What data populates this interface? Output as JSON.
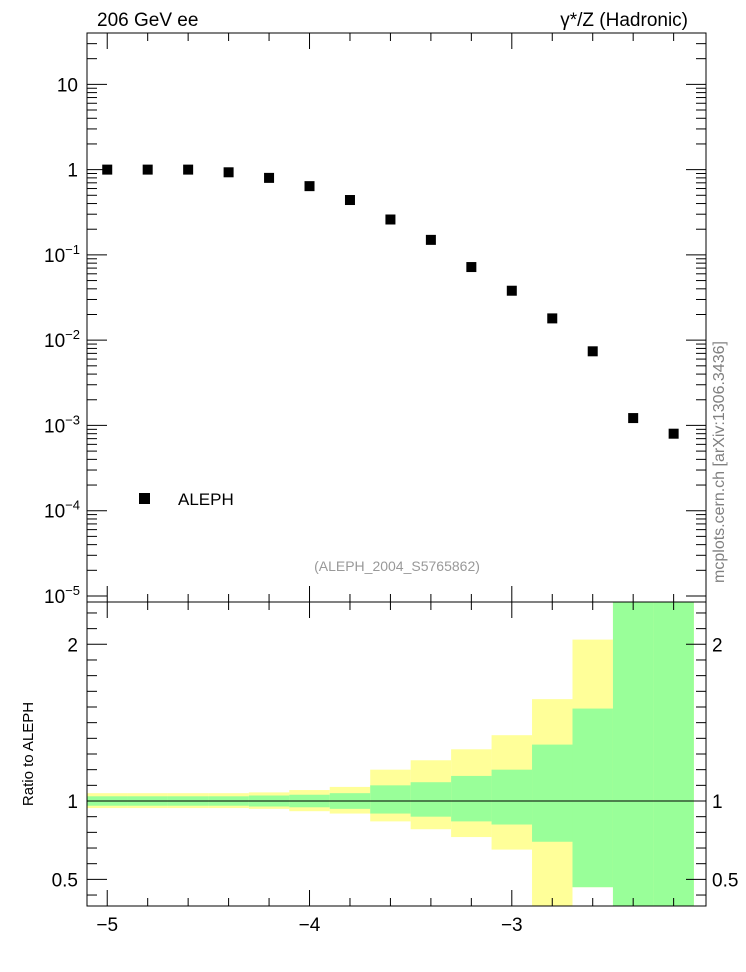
{
  "header": {
    "left_label": "206 GeV ee",
    "right_label": "γ*/Z (Hadronic)"
  },
  "side_label": "mcplots.cern.ch [arXiv:1306.3436]",
  "analysis_label": "(ALEPH_2004_S5765862)",
  "chart_data": [
    {
      "type": "scatter",
      "panel": "main",
      "y_scale": "log",
      "xlim": [
        -5.1,
        -2.04
      ],
      "ylim": [
        8.5e-06,
        40
      ],
      "y_ticks": [
        {
          "value": 10,
          "mant": "10",
          "exp": ""
        },
        {
          "value": 1,
          "mant": "1",
          "exp": ""
        },
        {
          "value": 0.1,
          "mant": "10",
          "exp": "−1"
        },
        {
          "value": 0.01,
          "mant": "10",
          "exp": "−2"
        },
        {
          "value": 0.001,
          "mant": "10",
          "exp": "−3"
        },
        {
          "value": 0.0001,
          "mant": "10",
          "exp": "−4"
        },
        {
          "value": 1e-05,
          "mant": "10",
          "exp": "−5"
        }
      ],
      "legend": {
        "label": "ALEPH",
        "position": "bottom-left"
      },
      "series": [
        {
          "name": "ALEPH",
          "x": [
            -5.0,
            -4.8,
            -4.6,
            -4.4,
            -4.2,
            -4.0,
            -3.8,
            -3.6,
            -3.4,
            -3.2,
            -3.0,
            -2.8,
            -2.6,
            -2.4,
            -2.2
          ],
          "y": [
            1.0,
            1.0,
            1.0,
            0.93,
            0.8,
            0.64,
            0.44,
            0.26,
            0.15,
            0.072,
            0.038,
            0.018,
            0.0074,
            0.00122,
            0.0008
          ]
        }
      ]
    },
    {
      "type": "area",
      "panel": "ratio",
      "ylabel": "Ratio to ALEPH",
      "xlim": [
        -5.1,
        -2.04
      ],
      "ylim": [
        0.33,
        2.27
      ],
      "x_ticks": [
        {
          "value": -5,
          "label": "−5"
        },
        {
          "value": -4,
          "label": "−4"
        },
        {
          "value": -3,
          "label": "−3"
        }
      ],
      "y_ticks": [
        {
          "value": 2,
          "label": "2"
        },
        {
          "value": 1,
          "label": "1"
        },
        {
          "value": 0.5,
          "label": "0.5"
        }
      ],
      "reference_line": 1,
      "bin_edges": [
        -5.1,
        -4.9,
        -4.7,
        -4.5,
        -4.3,
        -4.1,
        -3.9,
        -3.7,
        -3.5,
        -3.3,
        -3.1,
        -2.9,
        -2.7,
        -2.5,
        -2.3,
        -2.1
      ],
      "bands": [
        {
          "color": "#ffff99",
          "low": [
            0.955,
            0.955,
            0.955,
            0.955,
            0.95,
            0.935,
            0.92,
            0.87,
            0.82,
            0.77,
            0.69,
            0.33,
            0.45,
            0.33,
            0.33
          ],
          "high": [
            1.05,
            1.05,
            1.05,
            1.05,
            1.055,
            1.07,
            1.09,
            1.2,
            1.26,
            1.33,
            1.42,
            1.65,
            2.03,
            2.27,
            2.27
          ]
        },
        {
          "color": "#99ff99",
          "low": [
            0.97,
            0.97,
            0.97,
            0.97,
            0.965,
            0.96,
            0.95,
            0.92,
            0.9,
            0.87,
            0.85,
            0.74,
            0.45,
            0.33,
            0.33
          ],
          "high": [
            1.03,
            1.03,
            1.03,
            1.03,
            1.035,
            1.04,
            1.05,
            1.1,
            1.12,
            1.16,
            1.2,
            1.36,
            1.59,
            2.27,
            2.27
          ]
        }
      ]
    }
  ]
}
